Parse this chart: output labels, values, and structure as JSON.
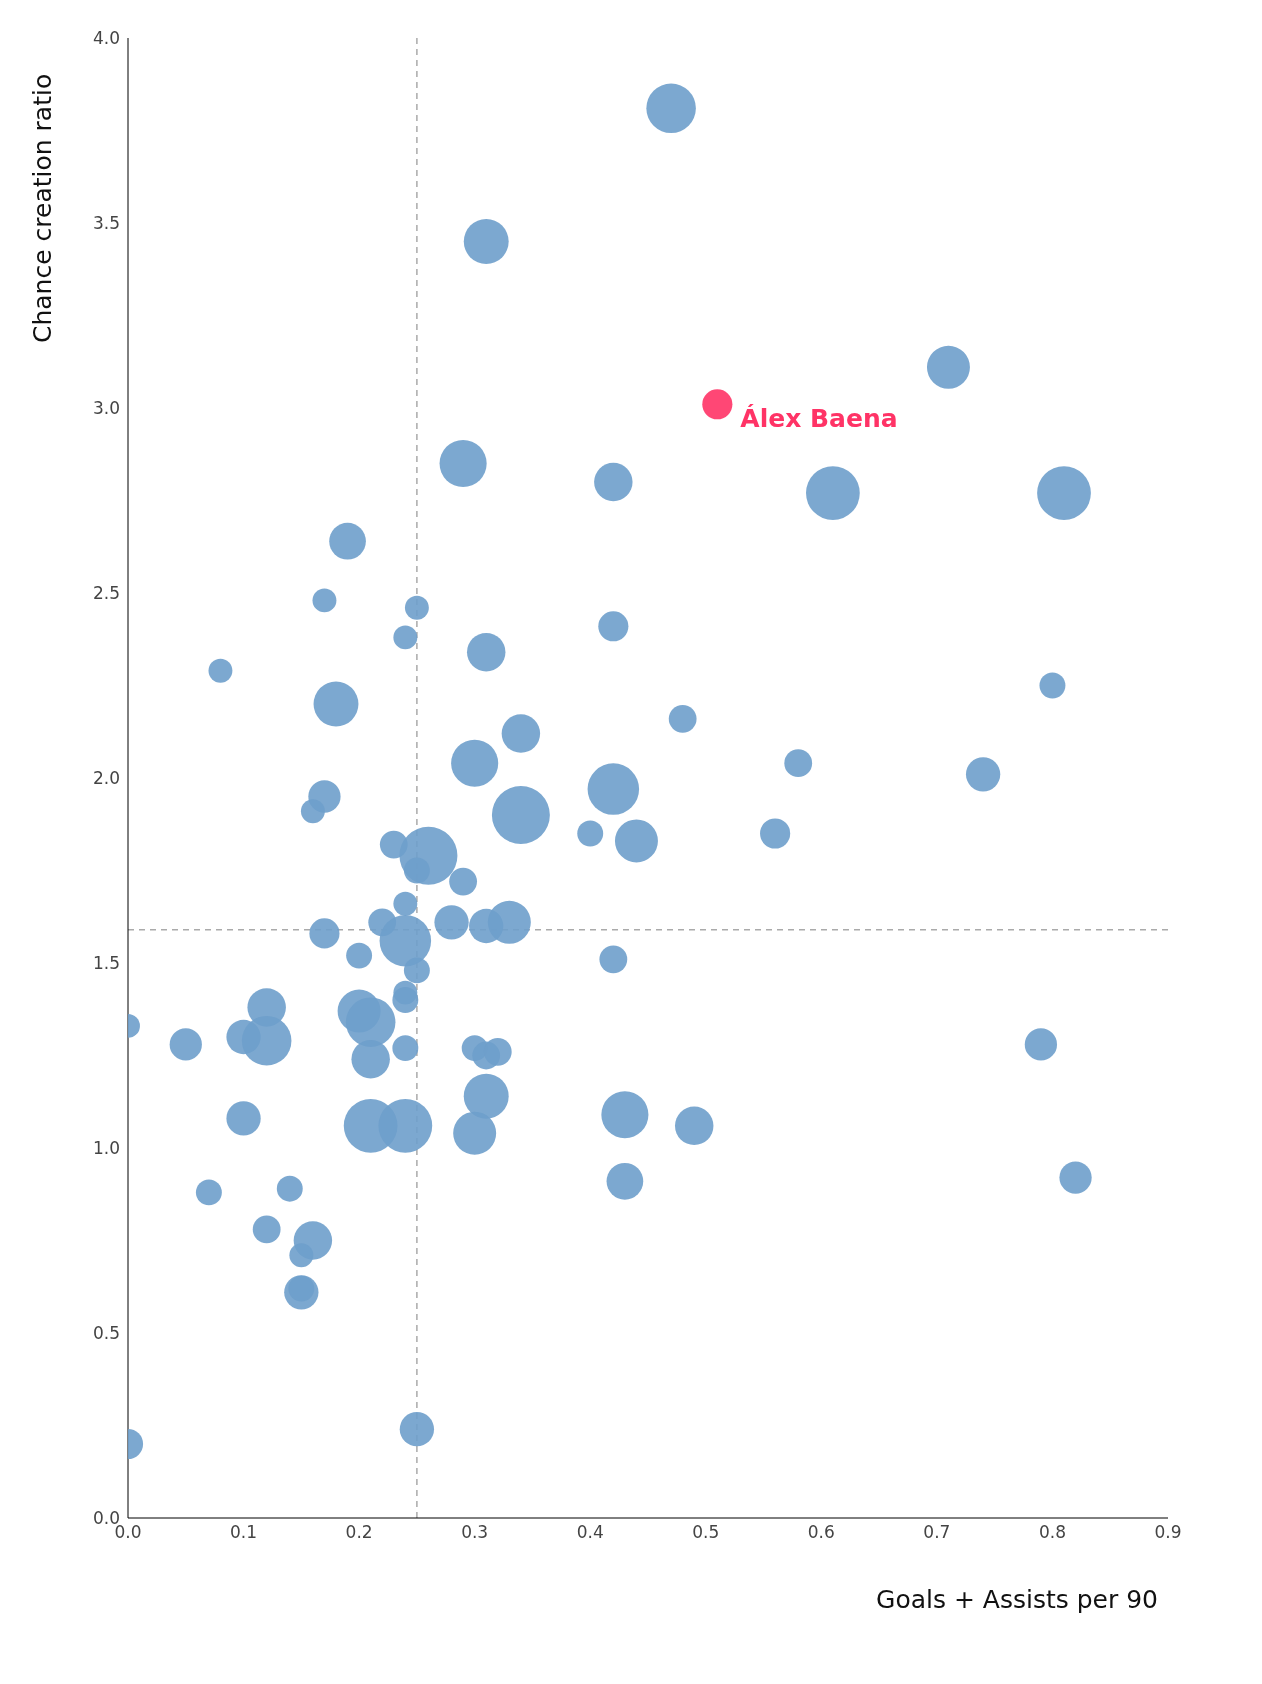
{
  "chart_data": {
    "type": "bubble",
    "xlabel": "Goals + Assists per 90",
    "ylabel": "Chance creation ratio",
    "xlim": [
      0,
      0.9
    ],
    "ylim": [
      0,
      4
    ],
    "xticks": [
      {
        "value": 0,
        "label": "0.0"
      },
      0.1,
      0.2,
      0.3,
      0.4,
      0.5,
      0.6,
      0.7,
      0.8,
      0.9
    ],
    "yticks": [
      {
        "value": 0,
        "label": "0.0"
      },
      0.5,
      {
        "value": 1,
        "label": "1.0"
      },
      1.5,
      {
        "value": 2,
        "label": "2.0"
      },
      2.5,
      {
        "value": 3,
        "label": "3.0"
      },
      3.5,
      {
        "value": 4,
        "label": "4.0"
      }
    ],
    "grid": false,
    "legend": false,
    "ref_lines": [
      {
        "axis": "x",
        "value": 0.25,
        "color": "#aaaaaa",
        "line_style": "dashed"
      },
      {
        "axis": "y",
        "value": 1.59,
        "color": "#aaaaaa",
        "line_style": "dashed"
      }
    ],
    "annotations": [
      {
        "text": "Álex Baena",
        "x": 0.51,
        "y": 3.01
      }
    ],
    "series": [
      {
        "color": "#6e9ecb",
        "x": [
          0.47,
          0.31,
          0.71,
          0.29,
          0.42,
          0.61,
          0.81,
          0.19,
          0.17,
          0.25,
          0.24,
          0.42,
          0.31,
          0.08,
          0.8,
          0.18,
          0.48,
          0.34,
          0.58,
          0.3,
          0.74,
          0.42,
          0.17,
          0.16,
          0.34,
          0.4,
          0.56,
          0.44,
          0.23,
          0.26,
          0.25,
          0.29,
          0.24,
          0.22,
          0.28,
          0.31,
          0.33,
          0.17,
          0.24,
          0.2,
          0.42,
          0.25,
          0.24,
          0.24,
          0.12,
          0.2,
          0.21,
          0,
          0.1,
          0.12,
          0.05,
          0.79,
          0.24,
          0.3,
          0.31,
          0.32,
          0.21,
          0.31,
          0.43,
          0.1,
          0.21,
          0.24,
          0.49,
          0.3,
          0.82,
          0.43,
          0.07,
          0.14,
          0.12,
          0.16,
          0.15,
          0.15,
          0.15,
          0.25,
          0
        ],
        "values": [
          3.81,
          3.45,
          3.11,
          2.85,
          2.8,
          2.77,
          2.77,
          2.64,
          2.48,
          2.46,
          2.38,
          2.41,
          2.34,
          2.29,
          2.25,
          2.2,
          2.16,
          2.12,
          2.04,
          2.04,
          2.01,
          1.97,
          1.95,
          1.91,
          1.9,
          1.85,
          1.85,
          1.83,
          1.82,
          1.79,
          1.75,
          1.72,
          1.66,
          1.61,
          1.61,
          1.6,
          1.61,
          1.58,
          1.56,
          1.52,
          1.51,
          1.48,
          1.42,
          1.4,
          1.38,
          1.37,
          1.34,
          1.33,
          1.3,
          1.29,
          1.28,
          1.28,
          1.27,
          1.27,
          1.25,
          1.26,
          1.24,
          1.14,
          1.09,
          1.08,
          1.06,
          1.06,
          1.06,
          1.04,
          0.92,
          0.91,
          0.88,
          0.89,
          0.78,
          0.75,
          0.71,
          0.61,
          0.62,
          0.24,
          0.2
        ],
        "sizes": [
          0.73,
          0.6,
          0.55,
          0.66,
          0.44,
          0.86,
          0.86,
          0.4,
          0.17,
          0.17,
          0.17,
          0.27,
          0.44,
          0.17,
          0.2,
          0.6,
          0.23,
          0.44,
          0.23,
          0.66,
          0.35,
          0.79,
          0.31,
          0.17,
          1,
          0.2,
          0.27,
          0.55,
          0.23,
          1,
          0.2,
          0.23,
          0.17,
          0.23,
          0.35,
          0.35,
          0.55,
          0.27,
          0.79,
          0.2,
          0.23,
          0.2,
          0.17,
          0.2,
          0.44,
          0.55,
          0.73,
          0.17,
          0.35,
          0.73,
          0.31,
          0.31,
          0.2,
          0.2,
          0.23,
          0.23,
          0.44,
          0.6,
          0.66,
          0.35,
          0.86,
          0.86,
          0.44,
          0.55,
          0.31,
          0.4,
          0.2,
          0.2,
          0.23,
          0.44,
          0.17,
          0.35,
          0.2,
          0.35,
          0.27
        ]
      },
      {
        "color": "#ff3366",
        "x": [
          0.51
        ],
        "values": [
          3.01
        ],
        "sizes": [
          0.27
        ]
      }
    ]
  }
}
